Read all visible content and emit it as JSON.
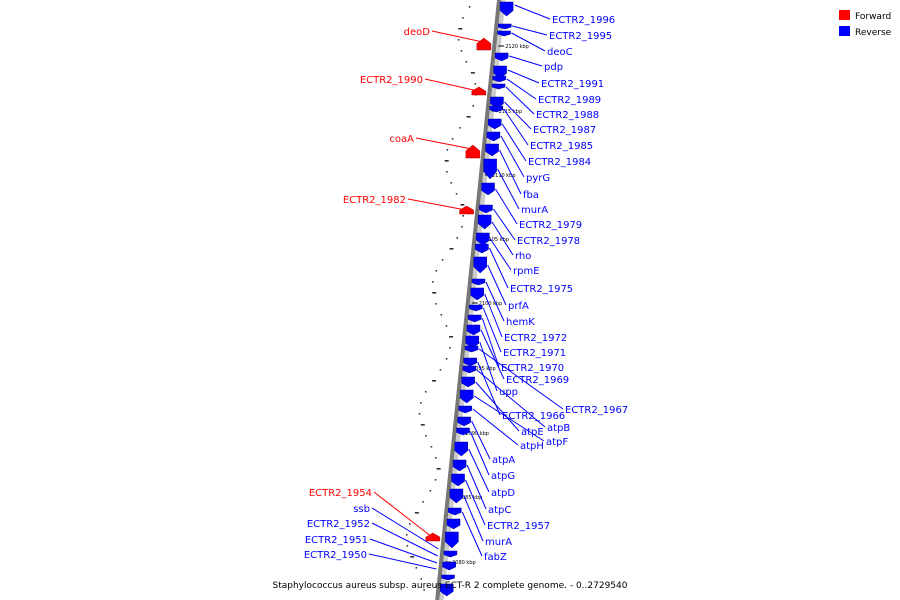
{
  "caption": "Staphylococcus aureus subsp. aureus ECT-R 2 complete genome. - 0..2729540",
  "legend": {
    "forward": "Forward",
    "reverse": "Reverse",
    "forward_color": "#ff0000",
    "reverse_color": "#0000ff"
  },
  "ticks": [
    "2120 kbp",
    "2115 kbp",
    "2110 kbp",
    "2105 kbp",
    "2100 kbp",
    "2095 kbp",
    "2090 kbp",
    "2085 kbp",
    "2080 kbp"
  ],
  "forward_genes": [
    "deoD",
    "ECTR2_1990",
    "coaA",
    "ECTR2_1982",
    "ECTR2_1954"
  ],
  "reverse_genes_left": [
    "ssb",
    "ECTR2_1952",
    "ECTR2_1951",
    "ECTR2_1950"
  ],
  "reverse_genes_right": [
    "ECTR2_1996",
    "ECTR2_1995",
    "deoC",
    "pdp",
    "ECTR2_1991",
    "ECTR2_1989",
    "ECTR2_1988",
    "ECTR2_1987",
    "ECTR2_1985",
    "ECTR2_1984",
    "pyrG",
    "fba",
    "murA",
    "ECTR2_1979",
    "ECTR2_1978",
    "rho",
    "rpmE",
    "ECTR2_1975",
    "prfA",
    "hemK",
    "ECTR2_1972",
    "ECTR2_1971",
    "ECTR2_1970",
    "ECTR2_1969",
    "upp",
    "ECTR2_1967",
    "ECTR2_1966",
    "atpB",
    "atpE",
    "atpF",
    "atpH",
    "atpA",
    "atpG",
    "atpD",
    "atpC",
    "ECTR2_1957",
    "murA",
    "fabZ"
  ]
}
